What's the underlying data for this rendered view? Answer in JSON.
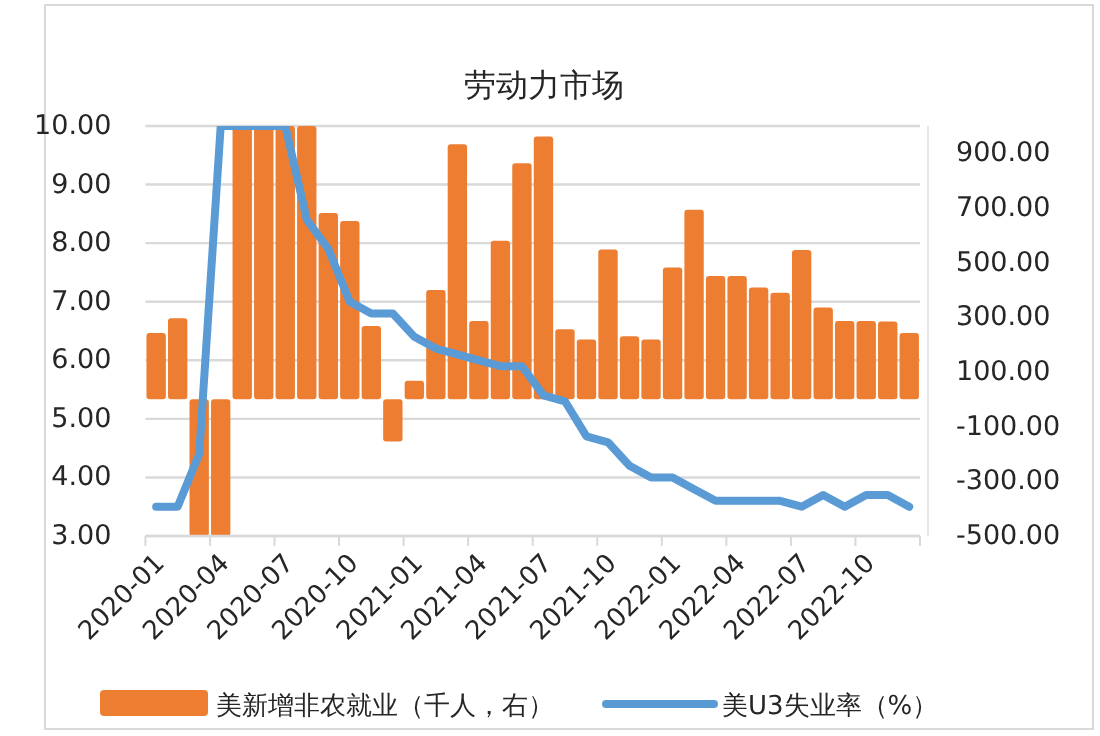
{
  "chart_data": {
    "type": "bar",
    "title": "劳动力市场",
    "categories": [
      "2020-01",
      null,
      null,
      "2020-04",
      null,
      null,
      "2020-07",
      null,
      null,
      "2020-10",
      null,
      null,
      "2021-01",
      null,
      null,
      "2021-04",
      null,
      null,
      "2021-07",
      null,
      null,
      "2021-10",
      null,
      null,
      "2022-01",
      null,
      null,
      "2022-04",
      null,
      null,
      "2022-07",
      null,
      null,
      "2022-10",
      null,
      null
    ],
    "series": [
      {
        "name": "美新增非农就业（千人，右）",
        "axis": "y2",
        "color": "#ed7d31",
        "values": [
          243,
          297,
          -500,
          -500,
          1000,
          1000,
          1000,
          1000,
          682,
          652,
          268,
          -154,
          68,
          400,
          933,
          287,
          580,
          864,
          962,
          256,
          219,
          548,
          231,
          219,
          482,
          694,
          451,
          451,
          409,
          390,
          546,
          336,
          287,
          287,
          285,
          243
        ]
      },
      {
        "name": "美U3失业率（%）",
        "type": "line",
        "color": "#5b9bd5",
        "values": [
          3.5,
          3.5,
          4.4,
          10,
          10,
          10,
          10,
          8.4,
          7.9,
          7.0,
          6.8,
          6.8,
          6.4,
          6.2,
          6.1,
          6.0,
          5.9,
          5.9,
          5.4,
          5.3,
          4.7,
          4.6,
          4.2,
          4.0,
          4.0,
          3.8,
          3.6,
          3.6,
          3.6,
          3.6,
          3.5,
          3.7,
          3.5,
          3.7,
          3.7,
          3.5
        ]
      }
    ],
    "ylim": [
      3,
      10
    ],
    "yticks": [
      {
        "value": 3,
        "label": "3.00"
      },
      {
        "value": 4,
        "label": "4.00"
      },
      {
        "value": 5,
        "label": "5.00"
      },
      {
        "value": 6,
        "label": "6.00"
      },
      {
        "value": 7,
        "label": "7.00"
      },
      {
        "value": 8,
        "label": "8.00"
      },
      {
        "value": 9,
        "label": "9.00"
      },
      {
        "value": 10,
        "label": "10.00"
      }
    ],
    "y2lim": [
      -500,
      1000
    ],
    "y2ticks": [
      {
        "value": -500,
        "label": "-500.00"
      },
      {
        "value": -300,
        "label": "-300.00"
      },
      {
        "value": -100,
        "label": "-100.00"
      },
      {
        "value": 100,
        "label": "100.00"
      },
      {
        "value": 300,
        "label": "300.00"
      },
      {
        "value": 500,
        "label": "500.00"
      },
      {
        "value": 700,
        "label": "700.00"
      },
      {
        "value": 900,
        "label": "900.00"
      }
    ],
    "grid": "y",
    "legend": "bottom"
  }
}
